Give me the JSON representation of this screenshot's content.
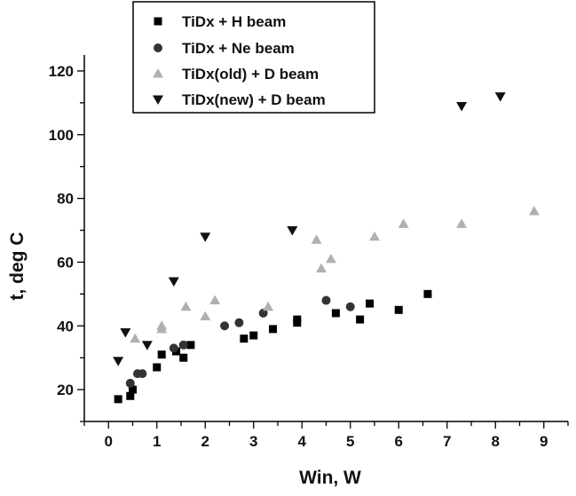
{
  "colors": {
    "h_beam": "#000000",
    "ne_beam": "#333333",
    "d_old_beam": "#b0b0b0",
    "d_new_beam": "#111111",
    "axis": "#000000"
  },
  "chart_data": {
    "type": "scatter",
    "title": "",
    "xlabel": "Win, W",
    "ylabel": "t, deg C",
    "xlim": [
      -0.5,
      9.5
    ],
    "ylim": [
      10,
      125
    ],
    "x_ticks": [
      0,
      1,
      2,
      3,
      4,
      5,
      6,
      7,
      8,
      9
    ],
    "y_ticks": [
      20,
      40,
      60,
      80,
      100,
      120
    ],
    "grid": false,
    "legend_position": "top-left",
    "series": [
      {
        "name": "TiDx + H beam",
        "marker": "square",
        "color": "#000000",
        "points": [
          [
            0.2,
            17
          ],
          [
            0.45,
            18
          ],
          [
            0.5,
            20
          ],
          [
            1.0,
            27
          ],
          [
            1.1,
            31
          ],
          [
            1.4,
            32
          ],
          [
            1.55,
            30
          ],
          [
            1.7,
            34
          ],
          [
            2.8,
            36
          ],
          [
            3.0,
            37
          ],
          [
            3.4,
            39
          ],
          [
            3.9,
            41
          ],
          [
            3.9,
            42
          ],
          [
            4.7,
            44
          ],
          [
            5.2,
            42
          ],
          [
            5.4,
            47
          ],
          [
            6.0,
            45
          ],
          [
            6.6,
            50
          ]
        ]
      },
      {
        "name": "TiDx + Ne beam",
        "marker": "circle",
        "color": "#333333",
        "points": [
          [
            0.45,
            22
          ],
          [
            0.6,
            25
          ],
          [
            0.7,
            25
          ],
          [
            1.35,
            33
          ],
          [
            1.55,
            34
          ],
          [
            2.4,
            40
          ],
          [
            2.7,
            41
          ],
          [
            3.2,
            44
          ],
          [
            4.5,
            48
          ],
          [
            5.0,
            46
          ]
        ]
      },
      {
        "name": "TiDx(old) + D beam",
        "marker": "triangle-up",
        "color": "#b0b0b0",
        "points": [
          [
            0.55,
            36
          ],
          [
            1.1,
            40
          ],
          [
            1.1,
            39
          ],
          [
            1.6,
            46
          ],
          [
            2.0,
            43
          ],
          [
            2.2,
            48
          ],
          [
            3.3,
            46
          ],
          [
            4.3,
            67
          ],
          [
            4.4,
            58
          ],
          [
            4.6,
            61
          ],
          [
            5.5,
            68
          ],
          [
            6.1,
            72
          ],
          [
            7.3,
            72
          ],
          [
            8.8,
            76
          ]
        ]
      },
      {
        "name": "TiDx(new) + D beam",
        "marker": "triangle-down",
        "color": "#111111",
        "points": [
          [
            0.2,
            29
          ],
          [
            0.35,
            38
          ],
          [
            0.8,
            34
          ],
          [
            1.35,
            54
          ],
          [
            2.0,
            68
          ],
          [
            3.8,
            70
          ],
          [
            7.3,
            109
          ],
          [
            8.1,
            112
          ]
        ]
      }
    ]
  }
}
